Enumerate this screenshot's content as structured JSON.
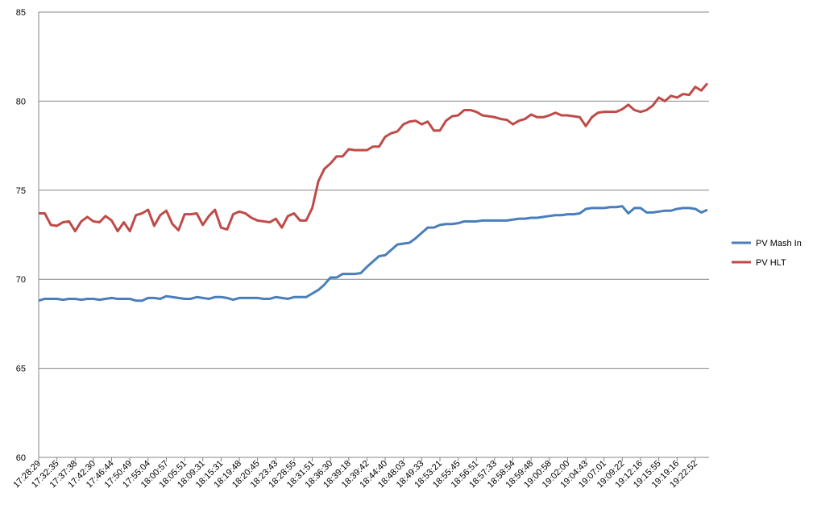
{
  "chart_data": {
    "type": "line",
    "categories": [
      "17:28:29",
      null,
      null,
      "17:32:35",
      null,
      null,
      "17:37:38",
      null,
      null,
      "17:42:30",
      null,
      null,
      "17:46:44",
      null,
      null,
      "17:50:49",
      null,
      null,
      "17:55:04",
      null,
      null,
      "18:00:57",
      null,
      null,
      "18:05:51",
      null,
      null,
      "18:09:31",
      null,
      null,
      "18:15:31",
      null,
      null,
      "18:19:48",
      null,
      null,
      "18:20:45",
      null,
      null,
      "18:23:43",
      null,
      null,
      "18:28:55",
      null,
      null,
      "18:31:51",
      null,
      null,
      "18:36:30",
      null,
      null,
      "18:39:18",
      null,
      null,
      "18:39:42",
      null,
      null,
      "18:44:40",
      null,
      null,
      "18:48:03",
      null,
      null,
      "18:49:33",
      null,
      null,
      "18:53:21",
      null,
      null,
      "18:55:45",
      null,
      null,
      "18:56:51",
      null,
      null,
      "18:57:33",
      null,
      null,
      "18:58:54",
      null,
      null,
      "18:59:48",
      null,
      null,
      "19:00:58",
      null,
      null,
      "19:02:00",
      null,
      null,
      "19:04:43",
      null,
      null,
      "19:07:01",
      null,
      null,
      "19:09:22",
      null,
      null,
      "19:12:16",
      null,
      null,
      "19:15:55",
      null,
      null,
      "19:19:16",
      null,
      null,
      "19:22:52",
      null,
      null
    ],
    "series": [
      {
        "name": "PV Mash In",
        "color": "#4a7ebb",
        "values": [
          68.8,
          68.9,
          68.9,
          68.9,
          68.85,
          68.9,
          68.9,
          68.85,
          68.9,
          68.9,
          68.85,
          68.9,
          68.95,
          68.9,
          68.9,
          68.9,
          68.8,
          68.8,
          68.95,
          68.95,
          68.9,
          69.05,
          69.0,
          68.95,
          68.9,
          68.9,
          69.0,
          68.95,
          68.9,
          69.0,
          69.0,
          68.95,
          68.85,
          68.95,
          68.95,
          68.95,
          68.95,
          68.9,
          68.9,
          69.0,
          68.95,
          68.9,
          69.0,
          69.0,
          69.0,
          69.2,
          69.4,
          69.7,
          70.1,
          70.1,
          70.3,
          70.3,
          70.3,
          70.35,
          70.7,
          71.0,
          71.3,
          71.35,
          71.65,
          71.95,
          72.0,
          72.05,
          72.3,
          72.6,
          72.9,
          72.9,
          73.05,
          73.1,
          73.1,
          73.15,
          73.25,
          73.25,
          73.25,
          73.3,
          73.3,
          73.3,
          73.3,
          73.3,
          73.35,
          73.4,
          73.4,
          73.45,
          73.45,
          73.5,
          73.55,
          73.6,
          73.6,
          73.65,
          73.65,
          73.7,
          73.95,
          74.0,
          74.0,
          74.0,
          74.05,
          74.05,
          74.1,
          73.7,
          74.0,
          74.0,
          73.75,
          73.75,
          73.8,
          73.85,
          73.85,
          73.95,
          74.0,
          74.0,
          73.95,
          73.75,
          73.9
        ]
      },
      {
        "name": "PV HLT",
        "color": "#be4b48",
        "values": [
          73.7,
          73.7,
          73.05,
          73.0,
          73.2,
          73.25,
          72.7,
          73.25,
          73.5,
          73.25,
          73.2,
          73.55,
          73.3,
          72.7,
          73.2,
          72.7,
          73.6,
          73.7,
          73.9,
          73.0,
          73.6,
          73.85,
          73.1,
          72.75,
          73.65,
          73.65,
          73.7,
          73.05,
          73.55,
          73.9,
          72.9,
          72.8,
          73.65,
          73.8,
          73.7,
          73.45,
          73.3,
          73.25,
          73.2,
          73.4,
          72.9,
          73.55,
          73.7,
          73.3,
          73.3,
          74.0,
          75.5,
          76.2,
          76.5,
          76.9,
          76.9,
          77.3,
          77.25,
          77.25,
          77.25,
          77.45,
          77.45,
          78.0,
          78.2,
          78.3,
          78.7,
          78.85,
          78.9,
          78.7,
          78.85,
          78.35,
          78.35,
          78.9,
          79.15,
          79.2,
          79.5,
          79.5,
          79.4,
          79.2,
          79.15,
          79.1,
          79.0,
          78.95,
          78.7,
          78.9,
          79.0,
          79.25,
          79.1,
          79.1,
          79.2,
          79.35,
          79.2,
          79.2,
          79.15,
          79.1,
          78.6,
          79.1,
          79.35,
          79.4,
          79.4,
          79.4,
          79.55,
          79.8,
          79.5,
          79.4,
          79.5,
          79.75,
          80.2,
          80.0,
          80.3,
          80.2,
          80.4,
          80.35,
          80.8,
          80.6,
          81.0
        ]
      }
    ],
    "ylim": [
      60,
      85
    ],
    "yticks": [
      60,
      65,
      70,
      75,
      80,
      85
    ],
    "grid": true,
    "legend": "right"
  }
}
